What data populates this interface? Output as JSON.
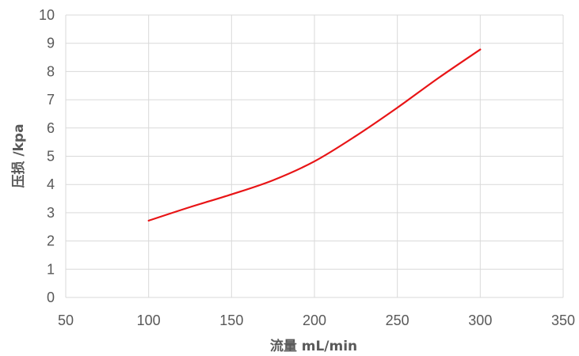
{
  "chart_data": {
    "type": "line",
    "title": "",
    "xlabel": "流量 mL/min",
    "ylabel": "压损 /kpa",
    "xlim": [
      50,
      350
    ],
    "ylim": [
      0,
      10
    ],
    "xticks": [
      "50",
      "100",
      "150",
      "200",
      "250",
      "300",
      "350"
    ],
    "yticks": [
      "0",
      "1",
      "2",
      "3",
      "4",
      "5",
      "6",
      "7",
      "8",
      "9",
      "10"
    ],
    "grid": true,
    "legend": "none",
    "series": [
      {
        "color": "#e81416",
        "x": [
          100,
          125,
          150,
          175,
          200,
          225,
          250,
          275,
          300
        ],
        "y": [
          2.72,
          3.2,
          3.65,
          4.15,
          4.82,
          5.72,
          6.72,
          7.78,
          8.78
        ]
      }
    ]
  }
}
